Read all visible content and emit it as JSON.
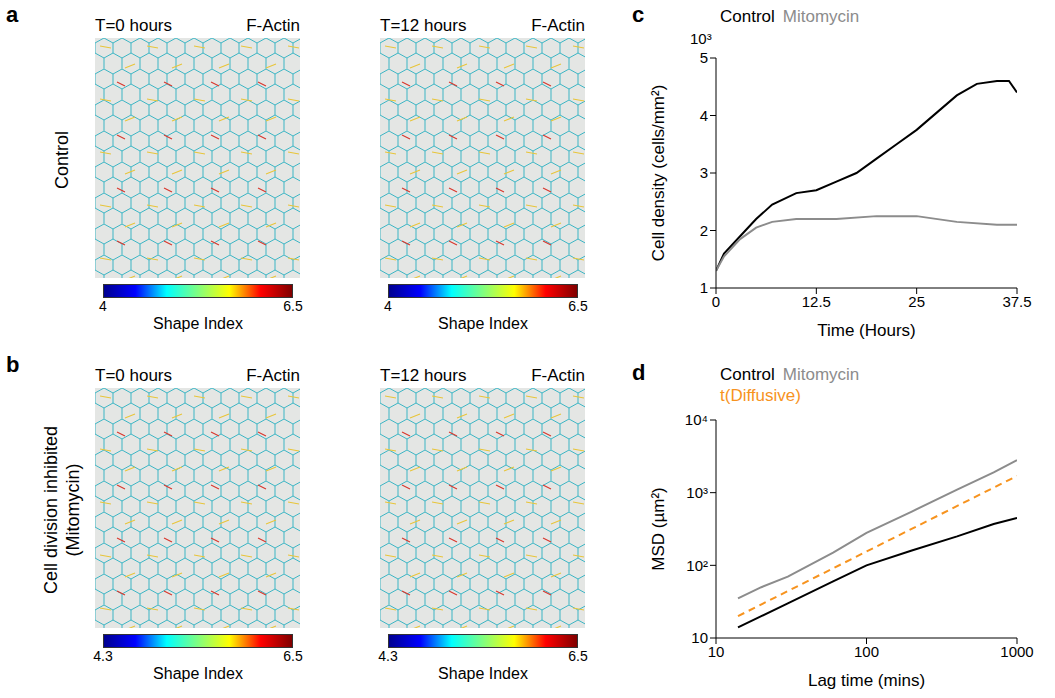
{
  "image_panels": [
    {
      "letter": "a",
      "row_label": "Control",
      "images": [
        {
          "time": "T=0 hours",
          "stain": "F-Actin"
        },
        {
          "time": "T=12 hours",
          "stain": "F-Actin"
        }
      ],
      "colorbar": {
        "label": "Shape Index",
        "range": [
          4,
          6.5
        ],
        "ticks": [
          4,
          6.5
        ]
      }
    },
    {
      "letter": "b",
      "row_label": "Cell division inhibited (Mitomycin)",
      "images": [
        {
          "time": "T=0 hours",
          "stain": "F-Actin"
        },
        {
          "time": "T=12 hours",
          "stain": "F-Actin"
        }
      ],
      "colorbar": {
        "label": "Shape Index",
        "range": [
          4.3,
          6.5
        ],
        "ticks": [
          4.3,
          6.5
        ]
      }
    }
  ],
  "chart_data": [
    {
      "letter": "c",
      "type": "line",
      "x_label": "Time (Hours)",
      "y_label": "Cell density (cells/mm²)",
      "annotations": [
        "10³"
      ],
      "legend": "top",
      "xlim": [
        0,
        37.5
      ],
      "xticks": [
        0,
        12.5,
        25,
        37.5
      ],
      "ylim": [
        1,
        5
      ],
      "yticks": [
        1,
        2,
        3,
        4,
        5
      ],
      "series": [
        {
          "name": "Control",
          "color": "#000000",
          "x": [
            0,
            1,
            3,
            5,
            7,
            10,
            12.5,
            15,
            17.5,
            20,
            22.5,
            25,
            27.5,
            30,
            32.5,
            35,
            36.5,
            37.5
          ],
          "values": [
            1.3,
            1.6,
            1.9,
            2.2,
            2.45,
            2.65,
            2.7,
            2.85,
            3.0,
            3.25,
            3.5,
            3.75,
            4.05,
            4.35,
            4.55,
            4.6,
            4.6,
            4.4
          ]
        },
        {
          "name": "Mitomycin",
          "color": "#8c8c8c",
          "x": [
            0,
            1,
            3,
            5,
            7,
            10,
            12.5,
            15,
            20,
            25,
            30,
            35,
            37.5
          ],
          "values": [
            1.3,
            1.55,
            1.85,
            2.05,
            2.15,
            2.2,
            2.2,
            2.2,
            2.25,
            2.25,
            2.15,
            2.1,
            2.1
          ]
        }
      ]
    },
    {
      "letter": "d",
      "type": "line",
      "log": true,
      "x_label": "Lag time (mins)",
      "y_label": "MSD (µm²)",
      "legend": "top",
      "xlim": [
        10,
        1000
      ],
      "xticks": [
        10,
        100,
        1000
      ],
      "ylim": [
        10,
        10000
      ],
      "yticks": [
        10,
        {
          "value": 100,
          "label": "10²"
        },
        {
          "value": 1000,
          "label": "10³"
        },
        {
          "value": 10000,
          "label": "10⁴"
        }
      ],
      "series": [
        {
          "name": "Control",
          "color": "#000000",
          "x": [
            14,
            20,
            30,
            60,
            100,
            200,
            400,
            700,
            1000
          ],
          "values": [
            14,
            20,
            30,
            60,
            100,
            160,
            250,
            370,
            450
          ]
        },
        {
          "name": "Mitomycin",
          "color": "#8c8c8c",
          "x": [
            14,
            20,
            30,
            60,
            100,
            200,
            400,
            700,
            1000
          ],
          "values": [
            35,
            50,
            70,
            150,
            280,
            550,
            1100,
            1900,
            2800
          ]
        },
        {
          "name": "t(Diffusive)",
          "color": "#f7931e",
          "line_style": "dashed",
          "x": [
            14,
            1000
          ],
          "values": [
            20,
            1700
          ]
        }
      ]
    }
  ]
}
